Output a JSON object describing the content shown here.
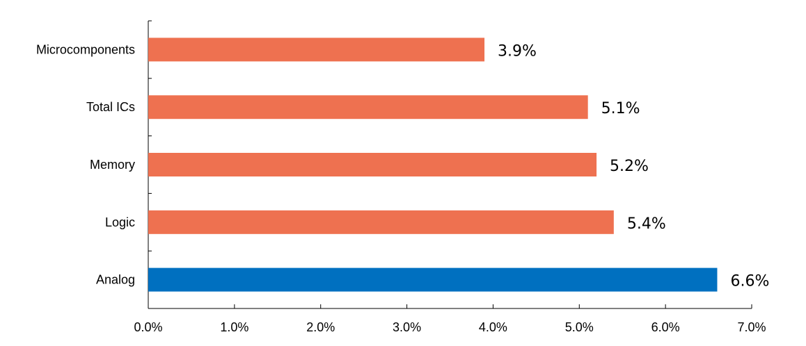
{
  "chart_data": {
    "type": "bar",
    "orientation": "horizontal",
    "title": "",
    "xlabel": "",
    "ylabel": "",
    "categories": [
      "Microcomponents",
      "Total ICs",
      "Memory",
      "Logic",
      "Analog"
    ],
    "values": [
      3.9,
      5.1,
      5.2,
      5.4,
      6.6
    ],
    "data_labels": [
      "3.9%",
      "5.1%",
      "5.2%",
      "5.4%",
      "6.6%"
    ],
    "xlim": [
      0,
      7
    ],
    "x_ticks": [
      0,
      1,
      2,
      3,
      4,
      5,
      6,
      7
    ],
    "x_tick_labels": [
      "0.0%",
      "1.0%",
      "2.0%",
      "3.0%",
      "4.0%",
      "5.0%",
      "6.0%",
      "7.0%"
    ],
    "grid": false,
    "legend": "none",
    "colors": {
      "default_bar": "#EE7150",
      "highlight_bar": "#0070C0",
      "highlight_category": "Analog"
    }
  }
}
